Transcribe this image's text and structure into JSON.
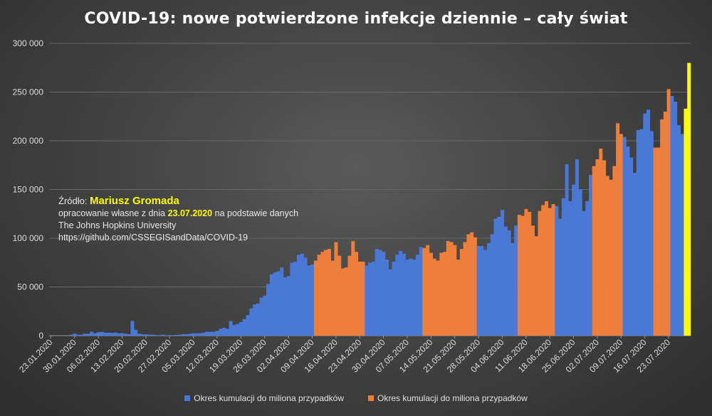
{
  "chart_data": {
    "type": "bar",
    "title": "COVID-19: nowe potwierdzone infekcje dziennie – cały świat",
    "ylim": [
      0,
      300000
    ],
    "yticks": [
      "0",
      "50 000",
      "100 000",
      "150 000",
      "200 000",
      "250 000",
      "300 000"
    ],
    "xtick_labels": [
      "23.01.2020",
      "30.01.2020",
      "06.02.2020",
      "13.02.2020",
      "20.02.2020",
      "27.02.2020",
      "05.03.2020",
      "12.03.2020",
      "19.03.2020",
      "26.03.2020",
      "02.04.2020",
      "09.04.2020",
      "16.04.2020",
      "23.04.2020",
      "30.04.2020",
      "07.05.2020",
      "14.05.2020",
      "21.05.2020",
      "28.05.2020",
      "04.06.2020",
      "11.06.2020",
      "18.06.2020",
      "25.06.2020",
      "02.07.2020",
      "09.07.2020",
      "16.07.2020",
      "23.07.2020"
    ],
    "start_date": "2020-01-23",
    "values": [
      0,
      0,
      0,
      0,
      0,
      0,
      1000,
      2000,
      1000,
      1000,
      2000,
      2000,
      4000,
      2500,
      3500,
      3800,
      3000,
      3000,
      2800,
      3200,
      2500,
      2500,
      2000,
      1500,
      15000,
      6000,
      2000,
      1500,
      1500,
      1000,
      1000,
      500,
      500,
      1000,
      500,
      500,
      500,
      800,
      1000,
      1500,
      1500,
      2000,
      2500,
      2500,
      2500,
      3000,
      4000,
      4000,
      4000,
      5000,
      7000,
      8000,
      7000,
      15000,
      11000,
      12000,
      14000,
      17000,
      21000,
      28000,
      32000,
      33000,
      39000,
      41000,
      53000,
      63000,
      65000,
      66000,
      70000,
      60000,
      61000,
      75000,
      76000,
      83000,
      84000,
      80000,
      72000,
      73000,
      77000,
      83000,
      86000,
      88000,
      89000,
      77000,
      96000,
      82000,
      69000,
      70000,
      82000,
      97000,
      86000,
      76000,
      76000,
      72000,
      75000,
      76000,
      89000,
      88000,
      86000,
      78000,
      68000,
      76000,
      83000,
      87000,
      84000,
      78000,
      79000,
      78000,
      83000,
      91000,
      90000,
      93000,
      85000,
      79000,
      77000,
      85000,
      86000,
      97000,
      96000,
      93000,
      78000,
      89000,
      96000,
      104000,
      106000,
      101000,
      92000,
      92000,
      88000,
      95000,
      104000,
      120000,
      122000,
      129000,
      112000,
      108000,
      95000,
      113000,
      124000,
      123000,
      130000,
      127000,
      113000,
      102000,
      128000,
      134000,
      138000,
      131000,
      135000,
      133000,
      120000,
      141000,
      176000,
      138000,
      155000,
      181000,
      150000,
      128000,
      138000,
      165000,
      174000,
      181000,
      192000,
      180000,
      164000,
      160000,
      174000,
      218000,
      207000,
      204000,
      194000,
      183000,
      167000,
      211000,
      212000,
      228000,
      232000,
      210000,
      193000,
      193000,
      222000,
      230000,
      253000,
      246000,
      240000,
      216000,
      207000,
      233000,
      280000
    ],
    "series": [
      {
        "name": "Okres kumulacji do miliona przypadków",
        "color": "#4a78d6"
      },
      {
        "name": "Okres kumulacji do miliona przypadków",
        "color": "#ee7f3a"
      }
    ],
    "highlight_color": "#ffff00",
    "period_breaks": [
      0,
      78,
      93,
      110,
      126,
      138,
      149,
      160,
      169,
      178,
      183,
      189,
      195,
      200,
      212
    ]
  },
  "source": {
    "label": "Źródło:",
    "author": "Mariusz Gromada",
    "line2_prefix": "opracowanie własne z dnia",
    "line2_date": "23.07.2020",
    "line2_suffix": "na podstawie danych",
    "line3": "The Johns Hopkins University",
    "line4": "https://github.com/CSSEGISandData/COVID-19"
  }
}
